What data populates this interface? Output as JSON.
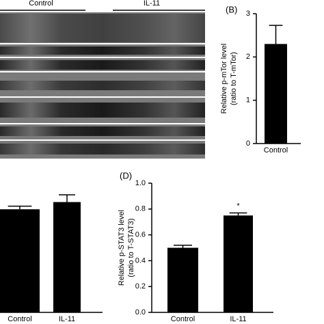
{
  "blot": {
    "labels": [
      "Control",
      "IL-11"
    ]
  },
  "chart_data": [
    {
      "type": "bar",
      "label": "(B)",
      "ylabel": [
        "Relative p-mTor level",
        "(ratio to T-mTor)"
      ],
      "categories": [
        "Control"
      ],
      "values": [
        2.3
      ],
      "errors": [
        0.43
      ],
      "color": "#000000",
      "ylim": [
        0,
        3
      ],
      "yticks": [
        0,
        1,
        2,
        3
      ]
    },
    {
      "type": "bar",
      "categories": [
        "Control",
        "IL-11"
      ],
      "values": [
        1.0,
        1.07
      ],
      "errors": [
        0.03,
        0.07
      ],
      "color": "#000000",
      "ylim": [
        0,
        1.2
      ]
    },
    {
      "type": "bar",
      "label": "(D)",
      "ylabel": [
        "Relative p-STAT3 level",
        "(ratio to T-STAT3)"
      ],
      "categories": [
        "Control",
        "IL-11"
      ],
      "values": [
        0.5,
        0.75
      ],
      "errors": [
        0.02,
        0.02
      ],
      "significance": [
        null,
        "*"
      ],
      "color": "#000000",
      "ylim": [
        0,
        1
      ],
      "yticks": [
        {
          "value": 0,
          "label": "0.0"
        },
        0.2,
        0.4,
        0.6,
        0.8,
        {
          "value": 1,
          "label": "1.0"
        }
      ]
    }
  ]
}
